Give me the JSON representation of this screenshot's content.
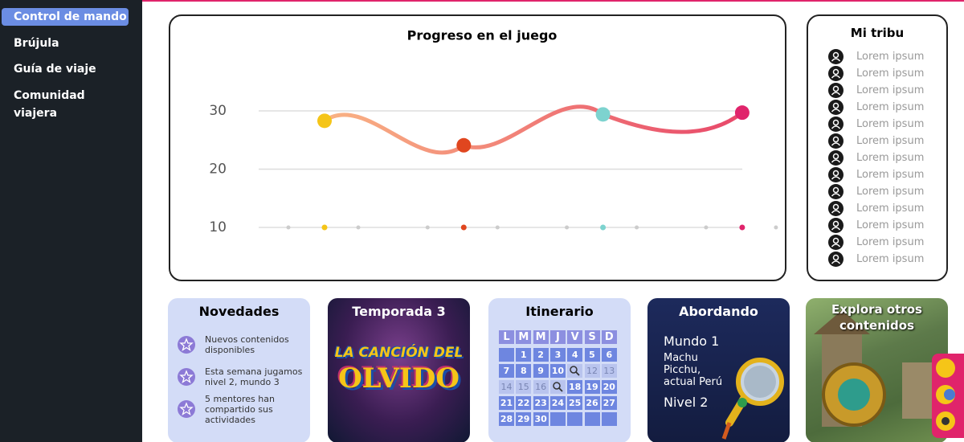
{
  "sidebar": {
    "menu": [
      "Control de mando",
      "Brújula",
      "Guía de viaje",
      "Comunidad viajera"
    ]
  },
  "progress_chart": {
    "title": "Progreso en el juego",
    "ylim": [
      10,
      30
    ],
    "yticks": [
      10,
      20,
      30
    ],
    "points": [
      28.3,
      24.1,
      29.4,
      29.7
    ],
    "colors": [
      "#f5c518",
      "#e0461f",
      "#7dd3cf",
      "#e0246b"
    ]
  },
  "tribe": {
    "title": "Mi tribu",
    "members": [
      "Lorem ipsum",
      "Lorem ipsum",
      "Lorem ipsum",
      "Lorem ipsum",
      "Lorem ipsum",
      "Lorem ipsum",
      "Lorem ipsum",
      "Lorem ipsum",
      "Lorem ipsum",
      "Lorem ipsum",
      "Lorem ipsum",
      "Lorem ipsum",
      "Lorem ipsum"
    ]
  },
  "news": {
    "title": "Novedades",
    "items": [
      "Nuevos contenidos disponibles",
      "Esta semana jugamos nivel 2, mundo 3",
      "5 mentores han compartido sus actividades"
    ]
  },
  "season": {
    "title": "Temporada 3",
    "logo_top": "LA CANCIÓN DEL",
    "logo_bottom": "OLVIDO"
  },
  "itinerary": {
    "title": "Itinerario",
    "weekdays": [
      "L",
      "M",
      "M",
      "J",
      "V",
      "S",
      "D"
    ],
    "weeks": [
      [
        null,
        1,
        2,
        3,
        4,
        5,
        6
      ],
      [
        7,
        8,
        9,
        10,
        null,
        12,
        13
      ],
      [
        14,
        15,
        16,
        null,
        18,
        19,
        20
      ],
      [
        21,
        22,
        23,
        24,
        25,
        26,
        27
      ],
      [
        28,
        29,
        30,
        null,
        null,
        null,
        null
      ]
    ]
  },
  "boarding": {
    "title": "Abordando",
    "world": "Mundo 1",
    "place": "Machu Picchu, actual Perú",
    "level": "Nivel 2"
  },
  "explore": {
    "title": "Explora otros contenidos"
  }
}
